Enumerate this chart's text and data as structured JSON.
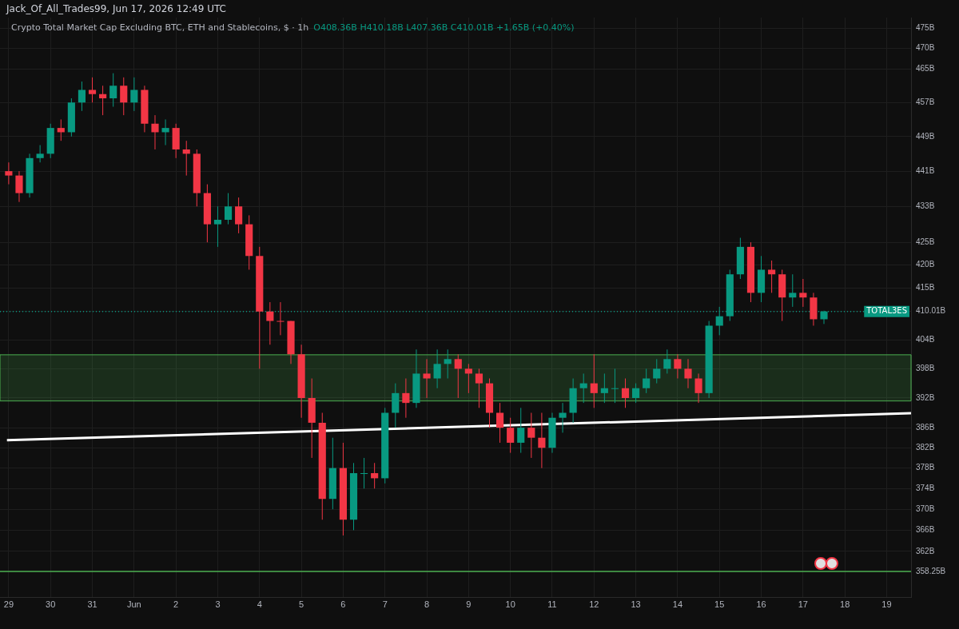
{
  "chart_data": {
    "type": "candlestick",
    "title": "Crypto Total Market Cap Excluding BTC, ETH and Stablecoins, $ · 1h",
    "annotations": [
      "Jack_Of_All_Trades99, Jun 17, 2026 12:49 UTC",
      "O408.36B H410.18B L407.36B C410.01B +1.65B (+0.40%)"
    ],
    "x": [
      "2026-05-29T00:00",
      "2026-05-29T06:00",
      "2026-05-29T12:00",
      "2026-05-29T18:00",
      "2026-05-30T00:00",
      "2026-05-30T06:00",
      "2026-05-30T12:00",
      "2026-05-30T18:00",
      "2026-05-31T00:00",
      "2026-05-31T06:00",
      "2026-05-31T12:00",
      "2026-05-31T18:00",
      "2026-06-01T00:00",
      "2026-06-01T06:00",
      "2026-06-01T12:00",
      "2026-06-01T18:00",
      "2026-06-02T00:00",
      "2026-06-02T06:00",
      "2026-06-02T12:00",
      "2026-06-02T18:00",
      "2026-06-03T00:00",
      "2026-06-03T06:00",
      "2026-06-03T12:00",
      "2026-06-03T18:00",
      "2026-06-04T00:00",
      "2026-06-04T06:00",
      "2026-06-04T12:00",
      "2026-06-04T18:00",
      "2026-06-05T00:00",
      "2026-06-05T06:00",
      "2026-06-05T12:00",
      "2026-06-05T18:00",
      "2026-06-06T00:00",
      "2026-06-06T06:00",
      "2026-06-06T12:00",
      "2026-06-06T18:00",
      "2026-06-07T00:00",
      "2026-06-07T06:00",
      "2026-06-07T12:00",
      "2026-06-07T18:00",
      "2026-06-08T00:00",
      "2026-06-08T06:00",
      "2026-06-08T12:00",
      "2026-06-08T18:00",
      "2026-06-09T00:00",
      "2026-06-09T06:00",
      "2026-06-09T12:00",
      "2026-06-09T18:00",
      "2026-06-10T00:00",
      "2026-06-10T06:00",
      "2026-06-10T12:00",
      "2026-06-10T18:00",
      "2026-06-11T00:00",
      "2026-06-11T06:00",
      "2026-06-11T12:00",
      "2026-06-11T18:00",
      "2026-06-12T00:00",
      "2026-06-12T06:00",
      "2026-06-12T12:00",
      "2026-06-12T18:00",
      "2026-06-13T00:00",
      "2026-06-13T06:00",
      "2026-06-13T12:00",
      "2026-06-13T18:00",
      "2026-06-14T00:00",
      "2026-06-14T06:00",
      "2026-06-14T12:00",
      "2026-06-14T18:00",
      "2026-06-15T00:00",
      "2026-06-15T06:00",
      "2026-06-15T12:00",
      "2026-06-15T18:00",
      "2026-06-16T00:00",
      "2026-06-16T06:00",
      "2026-06-16T12:00",
      "2026-06-16T18:00",
      "2026-06-17T00:00",
      "2026-06-17T06:00",
      "2026-06-17T12:00"
    ],
    "ohlc": [
      [
        441,
        443,
        438,
        440
      ],
      [
        440,
        441,
        434,
        436
      ],
      [
        436,
        445,
        435,
        444
      ],
      [
        444,
        447,
        443,
        445
      ],
      [
        445,
        452,
        444,
        451
      ],
      [
        451,
        453,
        448,
        450
      ],
      [
        450,
        458,
        449,
        457
      ],
      [
        457,
        462,
        455,
        460
      ],
      [
        460,
        463,
        457,
        459
      ],
      [
        459,
        461,
        454,
        458
      ],
      [
        458,
        464,
        456,
        461
      ],
      [
        461,
        463,
        454,
        457
      ],
      [
        457,
        463,
        455,
        460
      ],
      [
        460,
        461,
        450,
        452
      ],
      [
        452,
        454,
        446,
        450
      ],
      [
        450,
        453,
        447,
        451
      ],
      [
        451,
        452,
        444,
        446
      ],
      [
        446,
        448,
        440,
        445
      ],
      [
        445,
        446,
        433,
        436
      ],
      [
        436,
        438,
        425,
        429
      ],
      [
        429,
        433,
        424,
        430
      ],
      [
        430,
        436,
        429,
        433
      ],
      [
        433,
        435,
        427,
        429
      ],
      [
        429,
        431,
        419,
        422
      ],
      [
        422,
        424,
        398,
        410
      ],
      [
        410,
        412,
        403,
        408
      ],
      [
        408,
        412,
        405,
        408
      ],
      [
        408,
        408,
        399,
        401
      ],
      [
        401,
        403,
        388,
        392
      ],
      [
        392,
        396,
        380,
        387
      ],
      [
        387,
        389,
        368,
        372
      ],
      [
        372,
        384,
        370,
        378
      ],
      [
        378,
        383,
        365,
        368
      ],
      [
        368,
        379,
        366,
        377
      ],
      [
        377,
        380,
        374,
        377
      ],
      [
        377,
        379,
        374,
        376
      ],
      [
        376,
        390,
        375,
        389
      ],
      [
        389,
        395,
        386,
        393
      ],
      [
        393,
        396,
        388,
        391
      ],
      [
        391,
        402,
        390,
        397
      ],
      [
        397,
        400,
        392,
        396
      ],
      [
        396,
        402,
        394,
        399
      ],
      [
        399,
        402,
        396,
        400
      ],
      [
        400,
        401,
        392,
        398
      ],
      [
        398,
        399,
        393,
        397
      ],
      [
        397,
        398,
        390,
        395
      ],
      [
        395,
        396,
        386,
        389
      ],
      [
        389,
        391,
        383,
        386
      ],
      [
        386,
        388,
        381,
        383
      ],
      [
        383,
        390,
        381,
        386
      ],
      [
        386,
        389,
        380,
        384
      ],
      [
        384,
        389,
        378,
        382
      ],
      [
        382,
        389,
        381,
        388
      ],
      [
        388,
        391,
        385,
        389
      ],
      [
        389,
        396,
        387,
        394
      ],
      [
        394,
        397,
        391,
        395
      ],
      [
        395,
        401,
        390,
        393
      ],
      [
        393,
        397,
        391,
        394
      ],
      [
        394,
        398,
        391,
        394
      ],
      [
        394,
        396,
        390,
        392
      ],
      [
        392,
        395,
        391,
        394
      ],
      [
        394,
        398,
        393,
        396
      ],
      [
        396,
        400,
        395,
        398
      ],
      [
        398,
        402,
        397,
        400
      ],
      [
        400,
        401,
        396,
        398
      ],
      [
        398,
        400,
        394,
        396
      ],
      [
        396,
        397,
        391,
        393
      ],
      [
        393,
        408,
        392,
        407
      ],
      [
        407,
        411,
        405,
        409
      ],
      [
        409,
        419,
        408,
        418
      ],
      [
        418,
        426,
        417,
        424
      ],
      [
        424,
        425,
        412,
        414
      ],
      [
        414,
        422,
        412,
        419
      ],
      [
        419,
        421,
        414,
        418
      ],
      [
        418,
        419,
        408,
        413
      ],
      [
        413,
        418,
        411,
        414
      ],
      [
        414,
        417,
        411,
        413
      ],
      [
        413,
        414,
        407,
        408.36
      ],
      [
        408.36,
        410.18,
        407.36,
        410.01
      ]
    ],
    "colors": [
      "#f23645",
      "#f23645",
      "#089981",
      "#089981",
      "#089981",
      "#f23645",
      "#089981",
      "#089981",
      "#f23645",
      "#f23645",
      "#089981",
      "#f23645",
      "#089981",
      "#f23645",
      "#f23645",
      "#089981",
      "#f23645",
      "#f23645",
      "#f23645",
      "#f23645",
      "#089981",
      "#089981",
      "#f23645",
      "#f23645",
      "#f23645",
      "#f23645",
      "#f23645",
      "#f23645",
      "#f23645",
      "#f23645",
      "#f23645",
      "#089981",
      "#f23645",
      "#089981",
      "#089981",
      "#f23645",
      "#089981",
      "#089981",
      "#f23645",
      "#089981",
      "#f23645",
      "#089981",
      "#089981",
      "#f23645",
      "#f23645",
      "#f23645",
      "#f23645",
      "#f23645",
      "#f23645",
      "#089981",
      "#f23645",
      "#f23645",
      "#089981",
      "#089981",
      "#089981",
      "#089981",
      "#f23645",
      "#089981",
      "#089981",
      "#f23645",
      "#089981",
      "#089981",
      "#089981",
      "#089981",
      "#f23645",
      "#f23645",
      "#f23645",
      "#089981",
      "#089981",
      "#089981",
      "#089981",
      "#f23645",
      "#089981",
      "#f23645",
      "#f23645",
      "#089981",
      "#f23645",
      "#f23645",
      "#089981"
    ],
    "series": [
      {
        "type": "line",
        "x": [
          "2026-05-28T23:00",
          "2026-06-19T14:00"
        ],
        "values": [
          383.5,
          388.9
        ],
        "color": "#ffffff"
      }
    ],
    "bands": [
      {
        "axis": "y",
        "from": 391.4,
        "to": 400.9,
        "color": "#4caf50"
      }
    ],
    "ref_lines": [
      {
        "axis": "y",
        "value": 358.25,
        "color": "#4caf50"
      },
      {
        "axis": "y",
        "value": 410.01,
        "label": "TOTAL3ES",
        "color": "#089981",
        "line_style": "dotted"
      }
    ],
    "log": true,
    "grid": true,
    "legend": false,
    "xlim": [
      "2026-05-28T19:00",
      "2026-06-19T14:00"
    ],
    "xticks": [
      {
        "value": "2026-05-29",
        "label": "29"
      },
      {
        "value": "2026-05-30",
        "label": "30"
      },
      {
        "value": "2026-05-31",
        "label": "31"
      },
      {
        "value": "2026-06-01",
        "label": "Jun"
      },
      {
        "value": "2026-06-02",
        "label": "2"
      },
      {
        "value": "2026-06-03",
        "label": "3"
      },
      {
        "value": "2026-06-04",
        "label": "4"
      },
      {
        "value": "2026-06-05",
        "label": "5"
      },
      {
        "value": "2026-06-06",
        "label": "6"
      },
      {
        "value": "2026-06-07",
        "label": "7"
      },
      {
        "value": "2026-06-08",
        "label": "8"
      },
      {
        "value": "2026-06-09",
        "label": "9"
      },
      {
        "value": "2026-06-10",
        "label": "10"
      },
      {
        "value": "2026-06-11",
        "label": "11"
      },
      {
        "value": "2026-06-12",
        "label": "12"
      },
      {
        "value": "2026-06-13",
        "label": "13"
      },
      {
        "value": "2026-06-14",
        "label": "14"
      },
      {
        "value": "2026-06-15",
        "label": "15"
      },
      {
        "value": "2026-06-16",
        "label": "16"
      },
      {
        "value": "2026-06-17",
        "label": "17"
      },
      {
        "value": "2026-06-18",
        "label": "18"
      },
      {
        "value": "2026-06-19",
        "label": "19"
      }
    ],
    "ylim": [
      353.4,
      477.6
    ],
    "yticks": [
      {
        "value": 358.25,
        "label": "358.25B"
      },
      {
        "value": 362,
        "label": "362B"
      },
      {
        "value": 366,
        "label": "366B"
      },
      {
        "value": 370,
        "label": "370B"
      },
      {
        "value": 374,
        "label": "374B"
      },
      {
        "value": 378,
        "label": "378B"
      },
      {
        "value": 382,
        "label": "382B"
      },
      {
        "value": 386,
        "label": "386B"
      },
      {
        "value": 392,
        "label": "392B"
      },
      {
        "value": 398,
        "label": "398B"
      },
      {
        "value": 404,
        "label": "404B"
      },
      {
        "value": 410.01,
        "label": "410.01B"
      },
      {
        "value": 415,
        "label": "415B"
      },
      {
        "value": 420,
        "label": "420B"
      },
      {
        "value": 425,
        "label": "425B"
      },
      {
        "value": 433,
        "label": "433B"
      },
      {
        "value": 441,
        "label": "441B"
      },
      {
        "value": 449,
        "label": "449B"
      },
      {
        "value": 457,
        "label": "457B"
      },
      {
        "value": 465,
        "label": "465B"
      },
      {
        "value": 470,
        "label": "470B"
      },
      {
        "value": 475,
        "label": "475B"
      }
    ]
  }
}
